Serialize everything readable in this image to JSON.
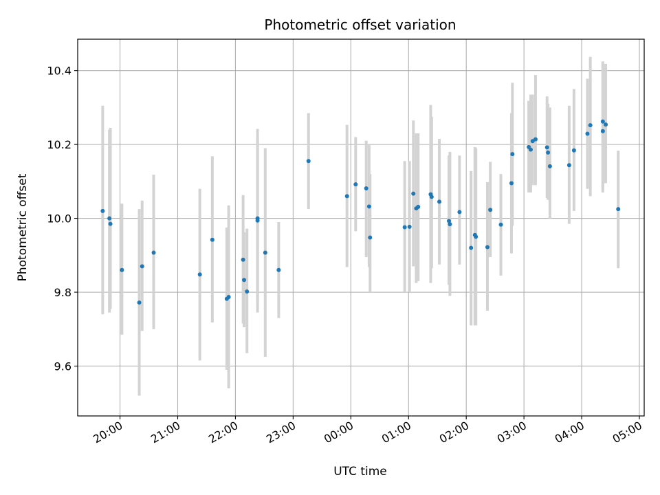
{
  "chart_data": {
    "type": "scatter",
    "title": "Photometric offset variation",
    "xlabel": "UTC time",
    "ylabel": "Photometric offset",
    "x_ticks": [
      "20:00",
      "21:00",
      "22:00",
      "23:00",
      "00:00",
      "01:00",
      "02:00",
      "03:00",
      "04:00",
      "05:00"
    ],
    "y_ticks": [
      "9.6",
      "9.8",
      "10.0",
      "10.2",
      "10.4"
    ],
    "xlim": [
      "19:16",
      "05:05"
    ],
    "ylim": [
      9.465,
      10.485
    ],
    "grid": true,
    "marker_color": "#1f77b4",
    "errorbar_color": "#d3d3d3",
    "series": [
      {
        "x": [
          "19:42",
          "19:49",
          "19:50",
          "20:02",
          "20:20",
          "20:23",
          "20:35",
          "21:23",
          "21:36",
          "21:51",
          "21:53",
          "22:08",
          "22:09",
          "22:12",
          "22:23",
          "22:23",
          "22:31",
          "22:45",
          "23:16",
          "23:56",
          "00:05",
          "00:16",
          "00:19",
          "00:20",
          "00:56",
          "01:01",
          "01:05",
          "01:08",
          "01:10",
          "01:23",
          "01:24",
          "01:32",
          "01:42",
          "01:43",
          "01:53",
          "02:05",
          "02:09",
          "02:10",
          "02:22",
          "02:25",
          "02:36",
          "02:47",
          "02:48",
          "03:05",
          "03:07",
          "03:09",
          "03:12",
          "03:24",
          "03:25",
          "03:27",
          "03:47",
          "03:52",
          "04:06",
          "04:09",
          "04:22",
          "04:22",
          "04:25",
          "04:38"
        ],
        "y": [
          10.02,
          10.0,
          9.985,
          9.86,
          9.772,
          9.87,
          9.907,
          9.848,
          9.942,
          9.782,
          9.787,
          9.888,
          9.833,
          9.802,
          10.0,
          9.994,
          9.907,
          9.86,
          10.155,
          10.06,
          10.092,
          10.081,
          10.032,
          9.948,
          9.976,
          9.977,
          10.067,
          10.027,
          10.031,
          10.065,
          10.058,
          10.045,
          9.993,
          9.984,
          10.017,
          9.92,
          9.955,
          9.95,
          9.922,
          10.023,
          9.983,
          10.095,
          10.174,
          10.193,
          10.186,
          10.209,
          10.214,
          10.192,
          10.178,
          10.141,
          10.144,
          10.184,
          10.229,
          10.252,
          10.262,
          10.236,
          10.254,
          10.025
        ],
        "yerr_low": [
          9.74,
          9.745,
          9.755,
          9.685,
          9.52,
          9.695,
          9.7,
          9.615,
          9.718,
          9.59,
          9.54,
          9.715,
          9.705,
          9.635,
          9.745,
          9.77,
          9.625,
          9.73,
          10.025,
          9.868,
          9.965,
          9.895,
          9.868,
          9.8,
          9.8,
          9.8,
          9.87,
          9.825,
          9.83,
          9.825,
          9.865,
          9.875,
          9.82,
          9.79,
          9.875,
          9.71,
          9.71,
          9.71,
          9.75,
          9.895,
          9.845,
          9.905,
          9.98,
          10.07,
          10.07,
          10.09,
          10.09,
          10.055,
          10.05,
          10.0,
          9.985,
          10.02,
          10.08,
          10.06,
          10.075,
          10.07,
          10.095,
          9.865
        ],
        "yerr_high": [
          10.305,
          10.24,
          10.245,
          10.04,
          10.025,
          10.048,
          10.118,
          10.08,
          10.168,
          9.975,
          10.035,
          10.063,
          9.962,
          9.972,
          10.242,
          10.215,
          10.19,
          9.99,
          10.285,
          10.253,
          10.22,
          10.21,
          10.2,
          10.12,
          10.155,
          10.155,
          10.265,
          10.23,
          10.23,
          10.307,
          10.275,
          10.215,
          10.17,
          10.18,
          10.17,
          10.128,
          10.193,
          10.19,
          10.098,
          10.153,
          10.12,
          10.285,
          10.367,
          10.318,
          10.335,
          10.335,
          10.388,
          10.33,
          10.31,
          10.3,
          10.305,
          10.35,
          10.378,
          10.437,
          10.425,
          10.42,
          10.418,
          10.183
        ]
      }
    ]
  }
}
